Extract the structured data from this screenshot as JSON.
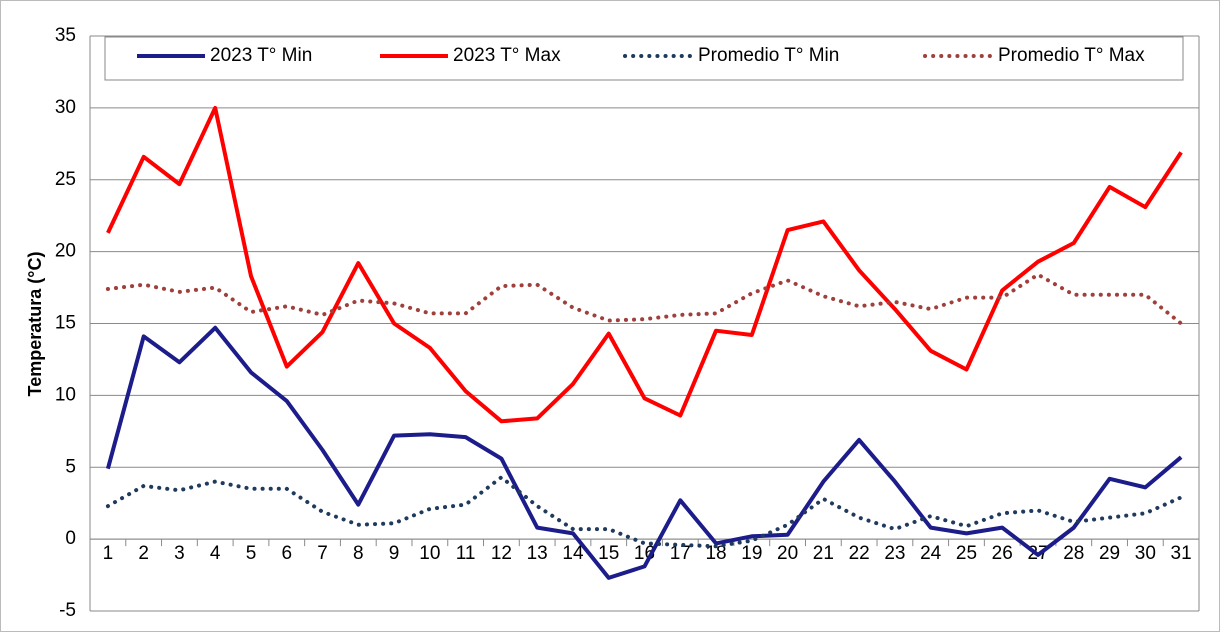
{
  "chart_data": {
    "type": "line",
    "y_label": "Temperatura  (°C)",
    "categories": [
      "1",
      "2",
      "3",
      "4",
      "5",
      "6",
      "7",
      "8",
      "9",
      "10",
      "11",
      "12",
      "13",
      "14",
      "15",
      "16",
      "17",
      "18",
      "19",
      "20",
      "21",
      "22",
      "23",
      "24",
      "25",
      "26",
      "27",
      "28",
      "29",
      "30",
      "31"
    ],
    "series": [
      {
        "name": "2023  T° Min",
        "color": "#1c1c8a",
        "style": "solid",
        "values": [
          4.9,
          14.1,
          12.3,
          14.7,
          11.6,
          9.6,
          6.2,
          2.4,
          7.2,
          7.3,
          7.1,
          5.6,
          0.8,
          0.4,
          -2.7,
          -1.9,
          2.7,
          -0.3,
          0.2,
          0.3,
          4.0,
          6.9,
          4.0,
          0.8,
          0.4,
          0.8,
          -1.1,
          0.8,
          4.2,
          3.6,
          5.7
        ]
      },
      {
        "name": "2023 T° Max",
        "color": "#ff0000",
        "style": "solid",
        "values": [
          21.3,
          26.6,
          24.7,
          30.0,
          18.3,
          12.0,
          14.4,
          19.2,
          15.0,
          13.3,
          10.3,
          8.2,
          8.4,
          10.8,
          14.3,
          9.8,
          8.6,
          14.5,
          14.2,
          21.5,
          22.1,
          18.7,
          16.0,
          13.1,
          11.8,
          17.3,
          19.3,
          20.6,
          24.5,
          23.1,
          26.9
        ]
      },
      {
        "name": "Promedio T° Min",
        "color": "#1f3a5c",
        "style": "dotted",
        "values": [
          2.3,
          3.7,
          3.4,
          4.0,
          3.5,
          3.5,
          1.9,
          1.0,
          1.1,
          2.1,
          2.4,
          4.3,
          2.3,
          0.7,
          0.7,
          -0.3,
          -0.4,
          -0.5,
          -0.1,
          1.0,
          2.8,
          1.5,
          0.7,
          1.6,
          0.9,
          1.8,
          2.0,
          1.2,
          1.5,
          1.8,
          2.9
        ]
      },
      {
        "name": "Promedio T° Max",
        "color": "#a0403c",
        "style": "dotted",
        "values": [
          17.4,
          17.7,
          17.2,
          17.5,
          15.8,
          16.2,
          15.6,
          16.6,
          16.4,
          15.7,
          15.7,
          17.6,
          17.7,
          16.1,
          15.2,
          15.3,
          15.6,
          15.7,
          17.1,
          18.0,
          16.9,
          16.2,
          16.5,
          16.0,
          16.8,
          16.8,
          18.4,
          17.0,
          17.0,
          17.0,
          15.0
        ]
      }
    ],
    "ylim": [
      -5,
      35
    ],
    "yticks": [
      -5,
      0,
      5,
      10,
      15,
      20,
      25,
      30,
      35
    ],
    "grid": true,
    "legend": "top"
  }
}
